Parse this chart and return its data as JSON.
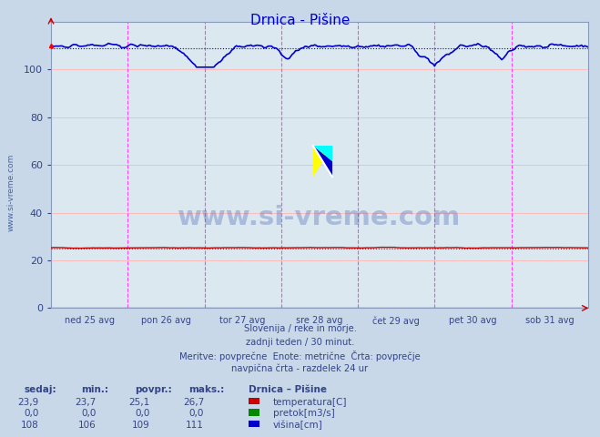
{
  "title": "Drnica - Pišine",
  "bg_color": "#c8d8e8",
  "plot_bg_color": "#dce8f0",
  "xlim": [
    0,
    336
  ],
  "ylim": [
    0,
    120
  ],
  "yticks": [
    0,
    20,
    40,
    60,
    80,
    100
  ],
  "x_day_labels": [
    "ned 25 avg",
    "pon 26 avg",
    "tor 27 avg",
    "sre 28 avg",
    "čet 29 avg",
    "pet 30 avg",
    "sob 31 avg"
  ],
  "x_day_positions": [
    0,
    48,
    96,
    144,
    192,
    240,
    288
  ],
  "n_points": 337,
  "temp_mean": 25.1,
  "temp_min": 23.7,
  "temp_max": 26.7,
  "temp_current": 23.9,
  "visina_mean": 109,
  "visina_min": 106,
  "visina_max": 111,
  "visina_current": 108,
  "pretok_mean": 0.0,
  "pretok_min": 0.0,
  "pretok_max": 0.0,
  "pretok_current": 0.0,
  "temp_color": "#cc0000",
  "pretok_color": "#008800",
  "visina_color": "#0000cc",
  "grid_color_h": "#ffbbbb",
  "vline_color": "#ff44ff",
  "title_color": "#0000cc",
  "text_color": "#334488",
  "watermark_color": "#3355aa",
  "footer_line1": "Slovenija / reke in morje.",
  "footer_line2": "zadnji teden / 30 minut.",
  "footer_line3": "Meritve: povprečne  Enote: metrične  Črta: povprečje",
  "footer_line4": "navpična črta - razdelek 24 ur",
  "legend_items": [
    "temperatura[C]",
    "pretok[m3/s]",
    "višina[cm]"
  ],
  "legend_colors": [
    "#cc0000",
    "#008800",
    "#0000cc"
  ],
  "sidebar_text": "www.si-vreme.com",
  "sidebar_color": "#4466aa",
  "rows": [
    [
      "23,9",
      "23,7",
      "25,1",
      "26,7"
    ],
    [
      "0,0",
      "0,0",
      "0,0",
      "0,0"
    ],
    [
      "108",
      "106",
      "109",
      "111"
    ]
  ],
  "col_headers": [
    "sedaj:",
    "min.:",
    "povpr.:",
    "maks.:",
    "Drnica – Pišine"
  ]
}
